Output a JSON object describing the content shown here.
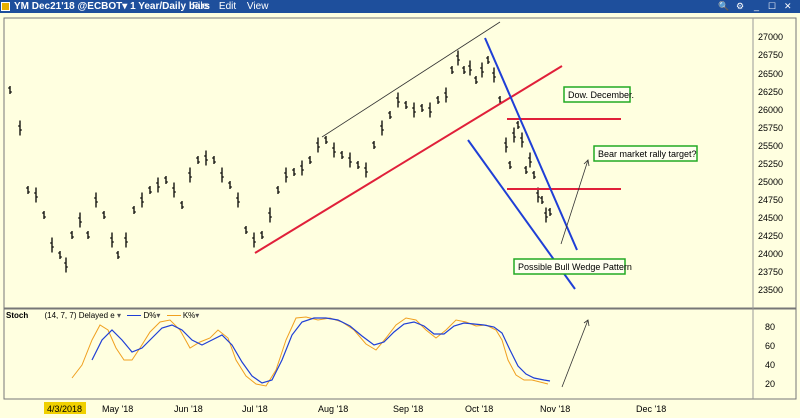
{
  "window": {
    "title": "YM Dec21'18 @ECBOT▾  1 Year/Daily bars",
    "menu": [
      "File",
      "Edit",
      "View"
    ],
    "controls": [
      "🔍",
      "⚙",
      "_",
      "☐",
      "✕"
    ]
  },
  "price_axis": {
    "ticks": [
      "27000",
      "26750",
      "26500",
      "26250",
      "26000",
      "25750",
      "25500",
      "25250",
      "25000",
      "24750",
      "24500",
      "24250",
      "24000",
      "23750",
      "23500"
    ]
  },
  "stoch_axis": {
    "ticks": [
      "80",
      "60",
      "40",
      "20"
    ]
  },
  "time_axis": {
    "ticks": [
      "4/3/2018",
      "May '18",
      "Jun '18",
      "Jul '18",
      "Aug '18",
      "Sep '18",
      "Oct '18",
      "Nov '18",
      "Dec '18"
    ]
  },
  "stoch_panel": {
    "name": "Stoch",
    "params": "(14, 7, 7) Delayed e",
    "d_label": "D%",
    "k_label": "K%",
    "d_color": "#1f3fd6",
    "k_color": "#f0a020"
  },
  "annotations": {
    "dow_december": "Dow. December.",
    "bear_rally": "Bear market rally target?",
    "bull_wedge": "Possible Bull Wedge Pattern"
  },
  "colors": {
    "background": "#ffffe0",
    "titlebar": "#1e4f9c",
    "trend_red": "#e0203a",
    "wedge_blue": "#1f3fd6",
    "annotation_border": "#22aa22"
  }
}
